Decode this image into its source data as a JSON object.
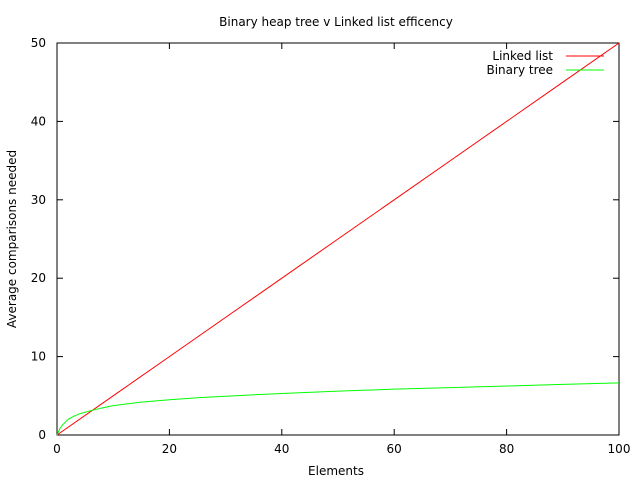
{
  "chart_data": {
    "type": "line",
    "title": "Binary heap tree v Linked list efficency",
    "xlabel": "Elements",
    "ylabel": "Average comparisons needed",
    "xlim": [
      0,
      100
    ],
    "ylim": [
      0,
      50
    ],
    "xticks": [
      0,
      20,
      40,
      60,
      80,
      100
    ],
    "yticks": [
      0,
      10,
      20,
      30,
      40,
      50
    ],
    "grid": false,
    "legend_position": "top-right",
    "series": [
      {
        "name": "Linked list",
        "color": "#ff0000",
        "x": [
          0,
          10,
          20,
          30,
          40,
          50,
          60,
          70,
          80,
          90,
          100
        ],
        "y": [
          0,
          5,
          10,
          15,
          20,
          25,
          30,
          35,
          40,
          45,
          50
        ]
      },
      {
        "name": "Binary tree",
        "color": "#00ff00",
        "x": [
          0,
          0.5,
          1,
          2,
          3,
          4,
          5,
          6,
          8,
          10,
          15,
          20,
          25,
          30,
          40,
          50,
          60,
          70,
          80,
          90,
          100
        ],
        "y": [
          0,
          0.8,
          1.3,
          2.0,
          2.4,
          2.7,
          2.9,
          3.1,
          3.45,
          3.75,
          4.2,
          4.5,
          4.75,
          4.95,
          5.3,
          5.6,
          5.85,
          6.05,
          6.25,
          6.45,
          6.65
        ]
      }
    ]
  }
}
